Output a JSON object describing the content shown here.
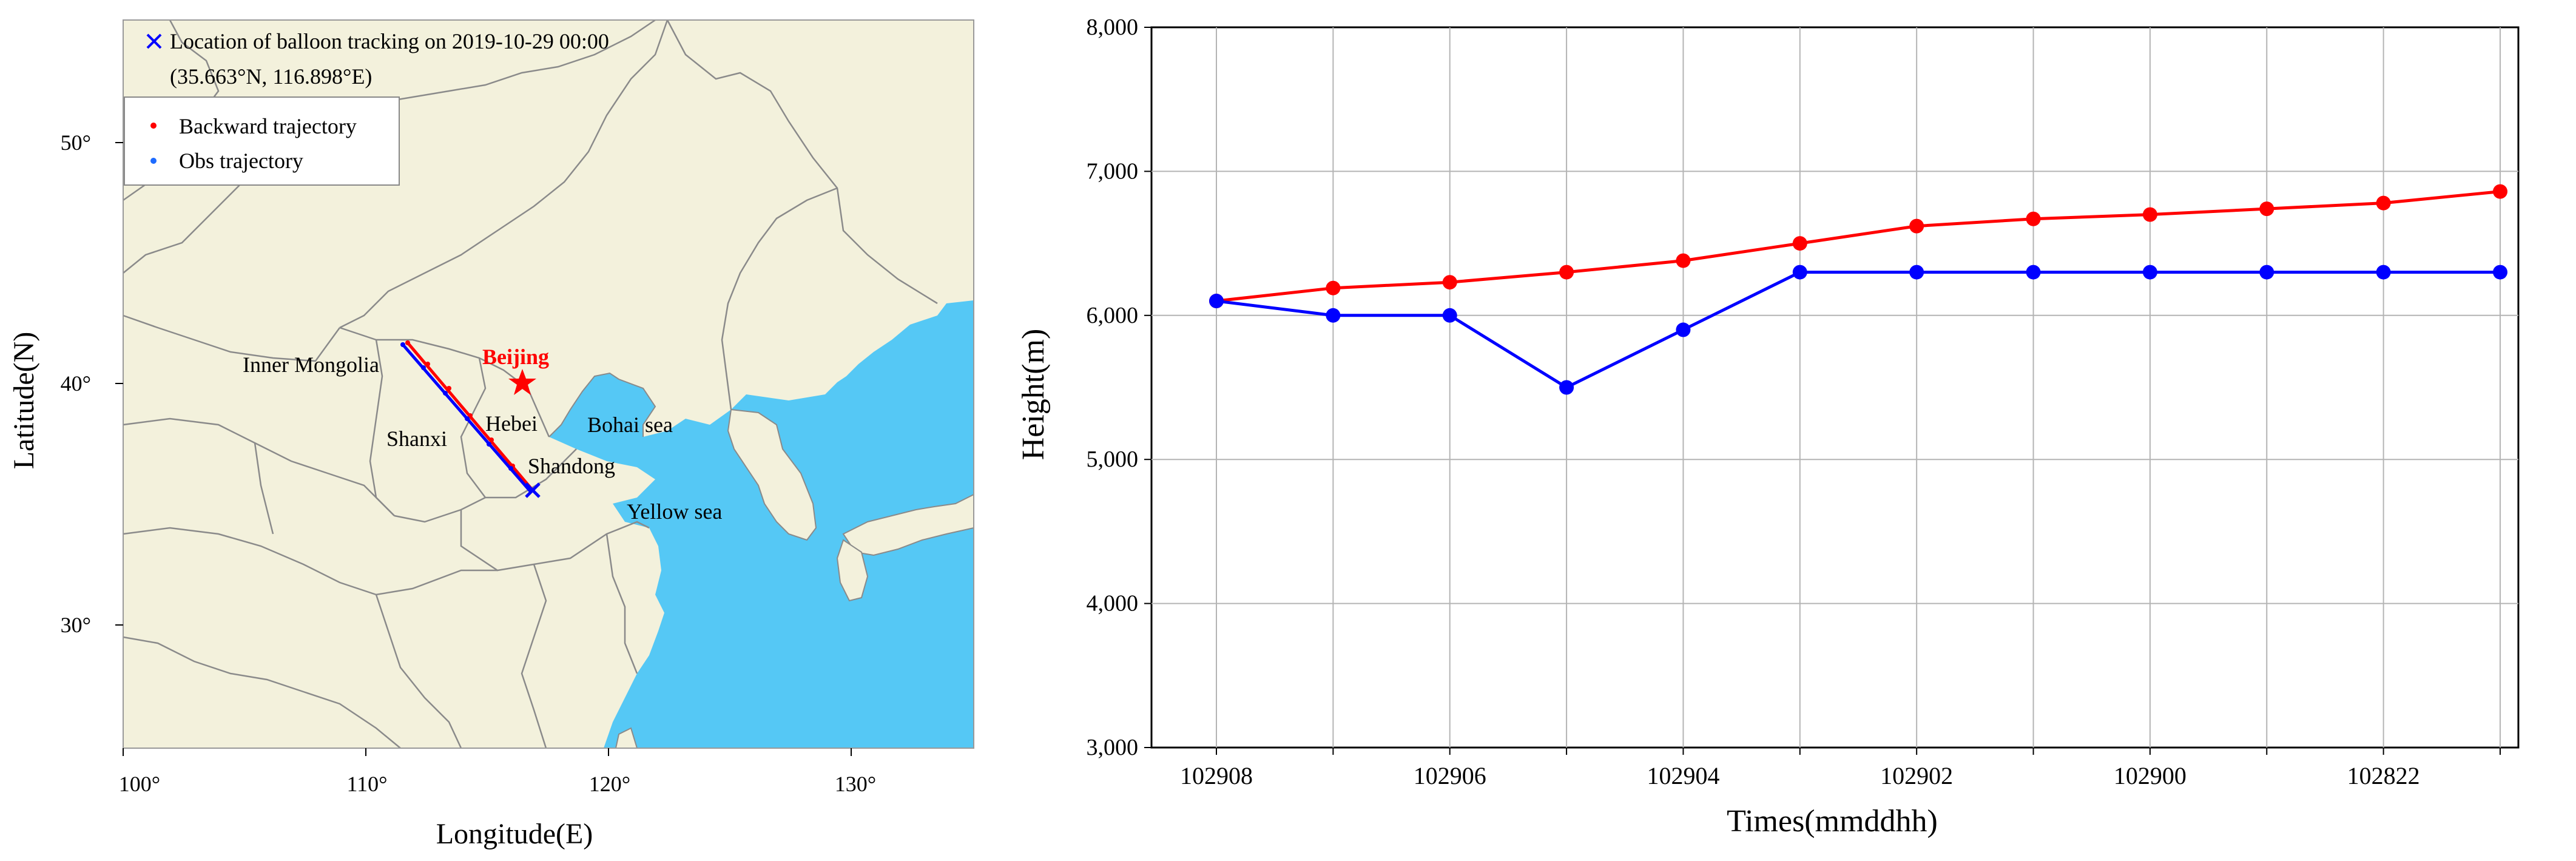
{
  "map": {
    "title_line1": "Location of balloon tracking on 2019-10-29 00:00",
    "title_line2": "(35.663°N, 116.898°E)",
    "legend": {
      "backward": "Backward trajectory",
      "obs": "Obs trajectory"
    },
    "xlabel": "Longitude(E)",
    "ylabel": "Latitude(N)",
    "xticks": [
      "100°",
      "110°",
      "120°",
      "130°"
    ],
    "yticks": [
      "50°",
      "40°",
      "30°"
    ],
    "places": {
      "inner_mongolia": "Inner Mongolia",
      "beijing": "Beijing",
      "shanxi": "Shanxi",
      "hebei": "Hebei",
      "bohai": "Bohai sea",
      "shandong": "Shandong",
      "yellow_sea": "Yellow sea"
    },
    "colors": {
      "land": "#f3f1dc",
      "sea": "#55c8f5",
      "border": "#8a8a8a",
      "backward": "#ff0000",
      "obs": "#0000ff"
    }
  },
  "chart_data": [
    {
      "type": "line",
      "title": "",
      "xlabel": "Times(mmddhh)",
      "ylabel": "Height(m)",
      "x_tick_labels": [
        "102908",
        "102906",
        "102904",
        "102902",
        "102900",
        "102822"
      ],
      "ylim": [
        3000,
        8000
      ],
      "y_ticks": [
        "3,000",
        "4,000",
        "5,000",
        "6,000",
        "7,000",
        "8,000"
      ],
      "grid": true,
      "n_points": 12,
      "series": [
        {
          "color": "#ff0000",
          "values": [
            6100,
            6190,
            6230,
            6300,
            6380,
            6500,
            6620,
            6670,
            6700,
            6740,
            6780,
            6860
          ]
        },
        {
          "color": "#0000ff",
          "values": [
            6100,
            6000,
            6000,
            5500,
            5900,
            6300,
            6300,
            6300,
            6300,
            6300,
            6300,
            6300
          ]
        }
      ]
    }
  ]
}
